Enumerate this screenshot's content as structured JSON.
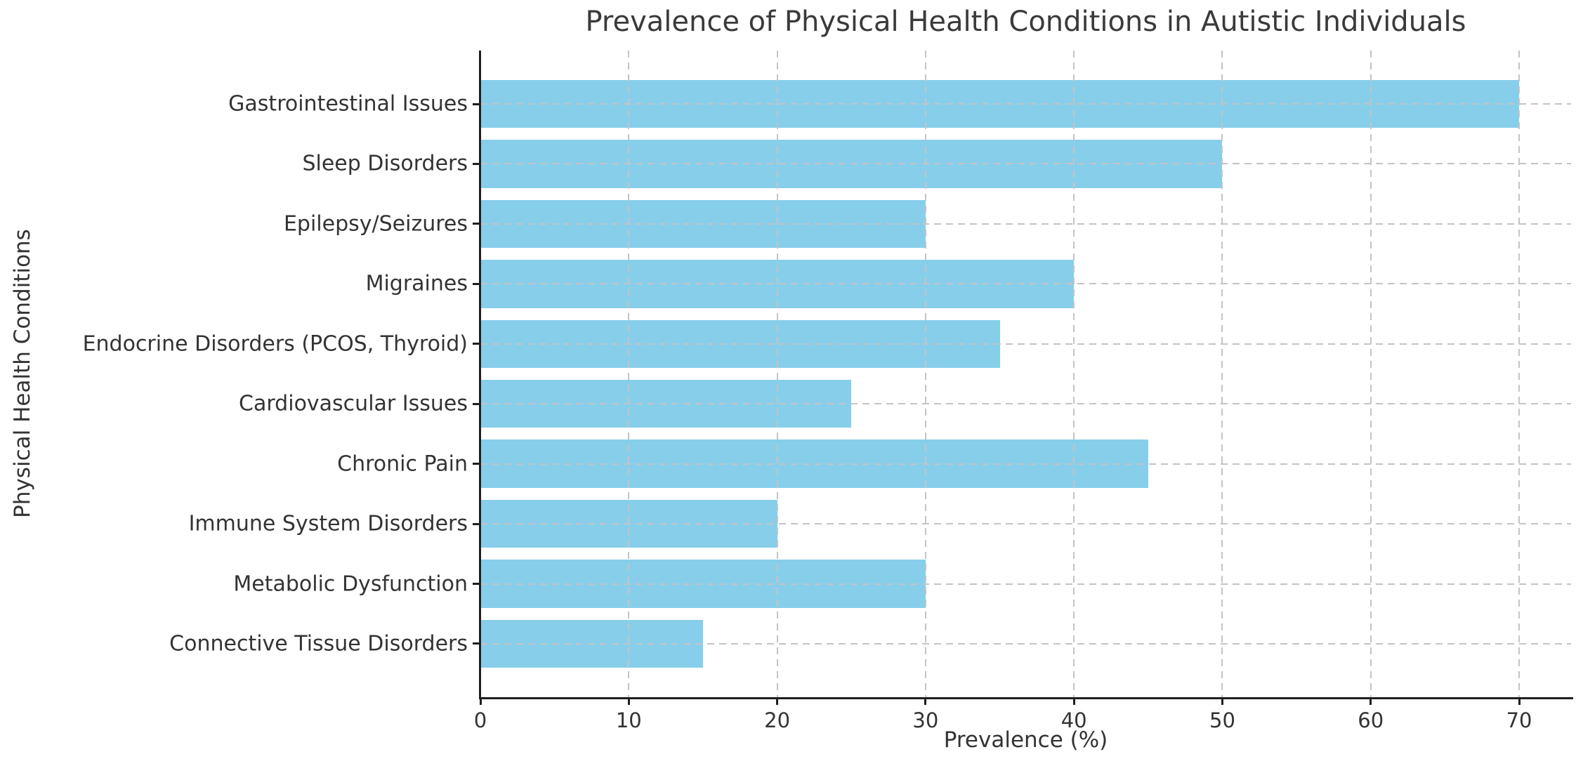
{
  "chart_data": {
    "type": "bar",
    "orientation": "horizontal",
    "title": "Prevalence of Physical Health Conditions in Autistic Individuals",
    "xlabel": "Prevalence (%)",
    "ylabel": "Physical Health Conditions",
    "categories": [
      "Gastrointestinal Issues",
      "Sleep Disorders",
      "Epilepsy/Seizures",
      "Migraines",
      "Endocrine Disorders (PCOS, Thyroid)",
      "Cardiovascular Issues",
      "Chronic Pain",
      "Immune System Disorders",
      "Metabolic Dysfunction",
      "Connective Tissue Disorders"
    ],
    "values": [
      70,
      50,
      30,
      40,
      35,
      25,
      45,
      20,
      30,
      15
    ],
    "xlim": [
      0,
      73.5
    ],
    "xticks": [
      0,
      10,
      20,
      30,
      40,
      50,
      60,
      70
    ],
    "grid": {
      "on": true,
      "style": "dashed"
    },
    "legend": "none",
    "colors": {
      "bar": "#87CEEB",
      "grid": "#c4c4c4",
      "spine": "#1f1f1f",
      "text": "#333333",
      "title": "#3a3a3a",
      "background": "#ffffff"
    }
  }
}
